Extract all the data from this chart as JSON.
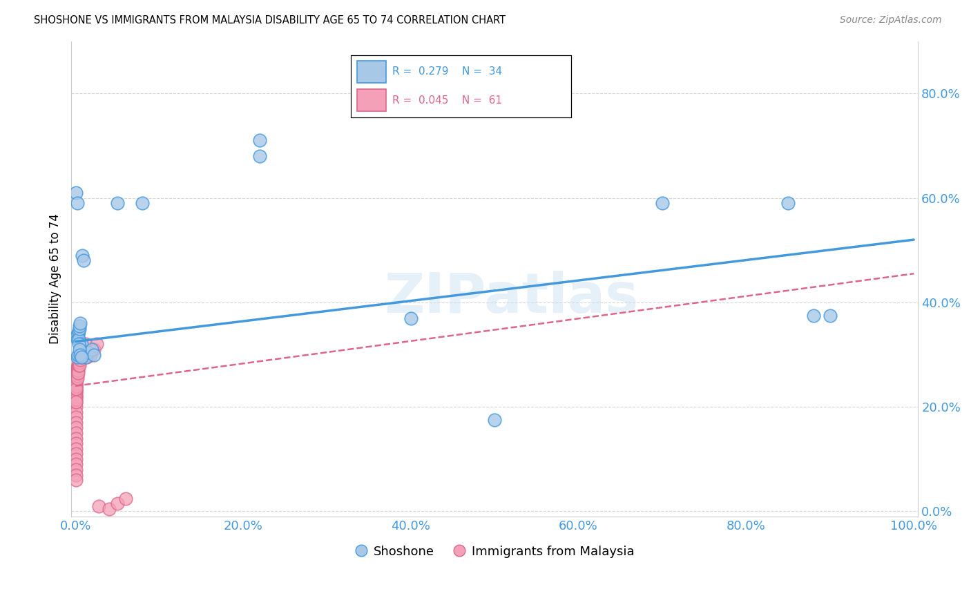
{
  "title": "SHOSHONE VS IMMIGRANTS FROM MALAYSIA DISABILITY AGE 65 TO 74 CORRELATION CHART",
  "source": "Source: ZipAtlas.com",
  "ylabel": "Disability Age 65 to 74",
  "legend_label1": "Shoshone",
  "legend_label2": "Immigrants from Malaysia",
  "R1": 0.279,
  "N1": 34,
  "R2": 0.045,
  "N2": 61,
  "shoshone_x": [
    0.001,
    0.001,
    0.002,
    0.002,
    0.003,
    0.003,
    0.004,
    0.004,
    0.005,
    0.005,
    0.006,
    0.007,
    0.008,
    0.01,
    0.012,
    0.015,
    0.02,
    0.022,
    0.05,
    0.08,
    0.22,
    0.22,
    0.4,
    0.5,
    0.7,
    0.85,
    0.88,
    0.9,
    0.002,
    0.003,
    0.004,
    0.005,
    0.006,
    0.007
  ],
  "shoshone_y": [
    0.335,
    0.61,
    0.59,
    0.33,
    0.34,
    0.34,
    0.345,
    0.33,
    0.35,
    0.355,
    0.36,
    0.32,
    0.49,
    0.48,
    0.295,
    0.305,
    0.31,
    0.3,
    0.59,
    0.59,
    0.71,
    0.68,
    0.37,
    0.175,
    0.59,
    0.59,
    0.375,
    0.375,
    0.295,
    0.3,
    0.32,
    0.31,
    0.3,
    0.295
  ],
  "malaysia_x": [
    0.0005,
    0.0005,
    0.0005,
    0.0005,
    0.0005,
    0.0005,
    0.0005,
    0.0005,
    0.0005,
    0.0005,
    0.0005,
    0.0005,
    0.0005,
    0.0005,
    0.0005,
    0.0005,
    0.0005,
    0.0005,
    0.0005,
    0.0005,
    0.001,
    0.001,
    0.001,
    0.001,
    0.001,
    0.001,
    0.001,
    0.001,
    0.001,
    0.001,
    0.001,
    0.001,
    0.001,
    0.001,
    0.001,
    0.002,
    0.002,
    0.002,
    0.002,
    0.002,
    0.003,
    0.003,
    0.003,
    0.003,
    0.004,
    0.004,
    0.005,
    0.005,
    0.006,
    0.007,
    0.008,
    0.01,
    0.012,
    0.014,
    0.018,
    0.022,
    0.025,
    0.028,
    0.04,
    0.05,
    0.06
  ],
  "malaysia_y": [
    0.25,
    0.24,
    0.23,
    0.22,
    0.21,
    0.2,
    0.19,
    0.18,
    0.17,
    0.16,
    0.15,
    0.14,
    0.13,
    0.12,
    0.11,
    0.1,
    0.09,
    0.08,
    0.07,
    0.06,
    0.255,
    0.25,
    0.245,
    0.24,
    0.235,
    0.23,
    0.225,
    0.22,
    0.215,
    0.21,
    0.255,
    0.25,
    0.245,
    0.24,
    0.235,
    0.275,
    0.27,
    0.265,
    0.26,
    0.255,
    0.28,
    0.275,
    0.27,
    0.265,
    0.285,
    0.28,
    0.285,
    0.28,
    0.29,
    0.295,
    0.3,
    0.31,
    0.32,
    0.295,
    0.3,
    0.31,
    0.32,
    0.01,
    0.005,
    0.015,
    0.025
  ],
  "blue_line_x0": 0.0,
  "blue_line_y0": 0.325,
  "blue_line_x1": 1.0,
  "blue_line_y1": 0.52,
  "pink_line_x0": 0.0,
  "pink_line_y0": 0.24,
  "pink_line_x1": 1.0,
  "pink_line_y1": 0.455,
  "color_blue": "#a8c8e8",
  "color_pink": "#f4a0b8",
  "line_blue": "#4499dd",
  "line_pink": "#dd6688",
  "watermark": "ZIPatlas",
  "background": "#ffffff",
  "grid_color": "#cccccc",
  "xlim": [
    0.0,
    1.0
  ],
  "ylim": [
    0.0,
    0.9
  ],
  "xticks": [
    0.0,
    0.2,
    0.4,
    0.6,
    0.8,
    1.0
  ],
  "yticks": [
    0.0,
    0.2,
    0.4,
    0.6,
    0.8
  ]
}
